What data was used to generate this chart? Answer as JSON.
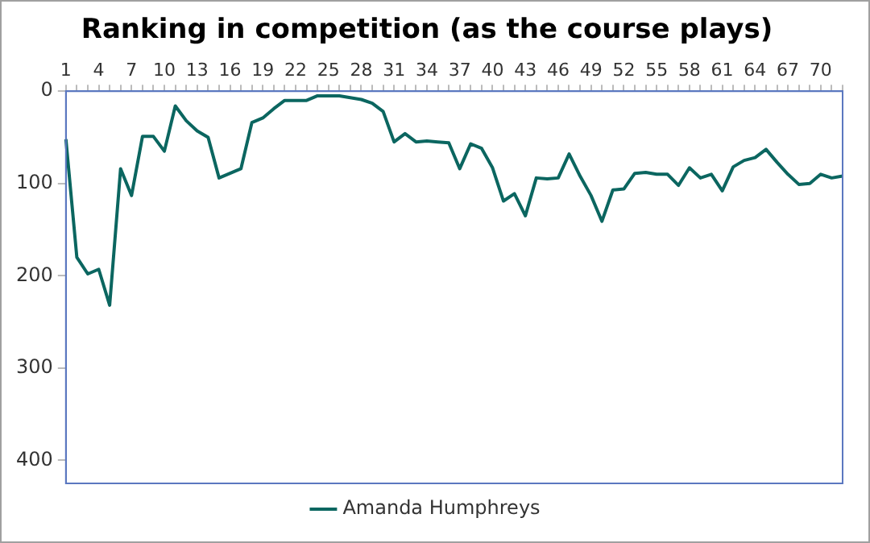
{
  "chart_data": {
    "type": "line",
    "title": "Ranking in competition (as the course plays)",
    "categories": [
      "1",
      null,
      null,
      "4",
      null,
      null,
      "7",
      null,
      null,
      "10",
      null,
      null,
      "13",
      null,
      null,
      "16",
      null,
      null,
      "19",
      null,
      null,
      "22",
      null,
      null,
      "25",
      null,
      null,
      "28",
      null,
      null,
      "31",
      null,
      null,
      "34",
      null,
      null,
      "37",
      null,
      null,
      "40",
      null,
      null,
      "43",
      null,
      null,
      "46",
      null,
      null,
      "49",
      null,
      null,
      "52",
      null,
      null,
      "55",
      null,
      null,
      "58",
      null,
      null,
      "61",
      null,
      null,
      "64",
      null,
      null,
      "67",
      null,
      null,
      "70",
      null,
      null
    ],
    "series": [
      {
        "name": "Amanda Humphreys",
        "color": "#0b6660",
        "values": [
          52,
          180,
          198,
          193,
          232,
          84,
          113,
          49,
          49,
          65,
          16,
          32,
          43,
          50,
          94,
          89,
          84,
          34,
          29,
          19,
          10,
          10,
          10,
          5,
          5,
          5,
          7,
          9,
          13,
          22,
          55,
          46,
          55,
          54,
          55,
          56,
          84,
          57,
          62,
          83,
          119,
          111,
          135,
          94,
          95,
          94,
          68,
          92,
          113,
          141,
          107,
          106,
          89,
          88,
          90,
          90,
          102,
          83,
          94,
          90,
          108,
          82,
          75,
          72,
          63,
          77,
          90,
          101,
          100,
          90,
          94,
          92
        ]
      }
    ],
    "ylim": [
      425,
      0
    ],
    "yticks": [
      0,
      100,
      200,
      300,
      400
    ],
    "grid": false,
    "legend": "bottom",
    "marker": "none"
  }
}
